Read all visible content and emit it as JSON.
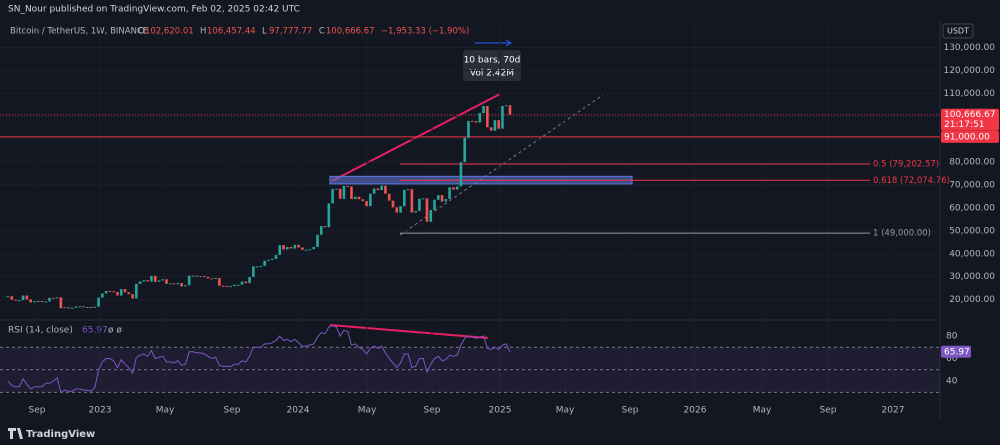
{
  "header": {
    "publisher": "SN_Nour published on TradingView.com, Feb 02, 2025 02:42 UTC"
  },
  "chart_data": {
    "type": "candlestick",
    "title": "Bitcoin / TetherUS, 1W, BINANCE",
    "legend": [
      {
        "key": "O",
        "value": "102,620.01"
      },
      {
        "key": "H",
        "value": "106,457.44"
      },
      {
        "key": "L",
        "value": "97,777.77"
      },
      {
        "key": "C",
        "value": "100,666.67"
      }
    ],
    "change": "−1,953.33 (−1.90%)",
    "currency": "USDT",
    "up_color": "#26a69a",
    "down_color": "#ef5350",
    "close": [
      21500,
      20000,
      19800,
      19800,
      21800,
      20100,
      18800,
      19300,
      19400,
      19100,
      19200,
      20800,
      20600,
      21000,
      16300,
      16700,
      16400,
      16500,
      17100,
      17100,
      16800,
      16800,
      16500,
      16900,
      20900,
      22700,
      23800,
      23700,
      23300,
      21800,
      24600,
      23200,
      22400,
      20500,
      26900,
      27900,
      28500,
      27900,
      30400,
      27800,
      28400,
      28900,
      26900,
      27100,
      26700,
      27200,
      25800,
      26300,
      30500,
      30500,
      30300,
      30300,
      29900,
      29300,
      29000,
      29400,
      26100,
      26000,
      25900,
      25900,
      26500,
      26500,
      27900,
      27200,
      29900,
      34500,
      34500,
      34700,
      37000,
      37400,
      37800,
      39500,
      43800,
      41900,
      43000,
      42300,
      43900,
      42800,
      41700,
      41800,
      42000,
      43000,
      48300,
      52100,
      51600,
      62000,
      68300,
      68400,
      64000,
      69600,
      69400,
      63900,
      64900,
      63800,
      63000,
      60800,
      66200,
      68500,
      67800,
      69700,
      66200,
      63200,
      60300,
      58000,
      60800,
      67900,
      68200,
      58000,
      58700,
      64000,
      64200,
      54000,
      59100,
      63600,
      65600,
      62800,
      63900,
      69000,
      68000,
      69400,
      80000,
      90600,
      98000,
      97900,
      97300,
      101400,
      104500,
      95200,
      93700,
      98300,
      94600,
      104500,
      104800,
      100666.67
    ],
    "ylim": [
      12000,
      142000
    ],
    "yticks": [
      {
        "value": 20000,
        "label": "20,000.00"
      },
      {
        "value": 30000,
        "label": "30,000.00"
      },
      {
        "value": 40000,
        "label": "40,000.00"
      },
      {
        "value": 50000,
        "label": "50,000.00"
      },
      {
        "value": 60000,
        "label": "60,000.00"
      },
      {
        "value": 70000,
        "label": "70,000.00"
      },
      {
        "value": 80000,
        "label": "80,000.00"
      },
      {
        "value": 90000,
        "label": "90,000.00"
      },
      {
        "value": 100000,
        "label": "100,000.00"
      },
      {
        "value": 110000,
        "label": "110,000.00"
      },
      {
        "value": 120000,
        "label": "120,000.00"
      },
      {
        "value": 130000,
        "label": "130,000.00"
      }
    ],
    "xticks": [
      "Sep",
      "2023",
      "May",
      "Sep",
      "2024",
      "May",
      "Sep",
      "2025",
      "May",
      "Sep",
      "2026",
      "May",
      "Sep",
      "2027"
    ],
    "last_price": {
      "value": 100666.67,
      "label": "100,666.67"
    },
    "countdown": "21:17:51",
    "alert_level": {
      "value": 91000,
      "label": "91,000.00"
    },
    "fib_levels": [
      {
        "value": 79202.57,
        "label": "0.5 (79,202.57)",
        "color": "#f23645"
      },
      {
        "value": 72074.76,
        "label": "0.618 (72,074.76)",
        "color": "#f23645"
      },
      {
        "value": 49000,
        "label": "1 (49,000.00)",
        "color": "#9598a1"
      }
    ],
    "zone": [
      70500,
      73800
    ],
    "measure": {
      "bars": "10 bars, 70d",
      "volume": "Vol 2.42M"
    },
    "rsi": {
      "title": "RSI (14, close)",
      "value": 65.97,
      "color": "#7e57c2",
      "ylim": [
        25,
        92.4
      ],
      "yticks": [
        80,
        60,
        40
      ],
      "levels": [
        70,
        50,
        30
      ],
      "values": [
        40,
        36,
        35,
        35,
        42,
        37,
        33,
        35,
        35,
        35,
        38,
        38,
        40,
        43,
        30,
        32,
        31,
        31,
        33,
        33,
        32,
        32,
        31,
        34,
        50,
        57,
        60,
        60,
        58,
        52,
        59,
        55,
        52,
        47,
        61,
        63,
        64,
        62,
        67,
        60,
        61,
        62,
        57,
        57,
        56,
        58,
        54,
        55,
        66,
        66,
        65,
        65,
        64,
        62,
        60,
        61,
        54,
        53,
        53,
        53,
        55,
        55,
        58,
        57,
        62,
        70,
        70,
        70,
        73,
        73,
        74,
        76,
        80,
        76,
        77,
        75,
        77,
        74,
        71,
        71,
        72,
        73,
        79,
        83,
        82,
        88,
        89,
        88,
        80,
        85,
        84,
        72,
        73,
        70,
        68,
        64,
        69,
        71,
        69,
        71,
        65,
        60,
        56,
        52,
        56,
        64,
        64,
        52,
        53,
        60,
        60,
        48,
        55,
        60,
        62,
        58,
        59,
        63,
        62,
        63,
        72,
        78,
        80,
        79,
        78,
        79,
        80,
        69,
        68,
        70,
        68,
        72,
        73,
        65.97
      ]
    }
  },
  "footer": {
    "brand": "TradingView"
  }
}
